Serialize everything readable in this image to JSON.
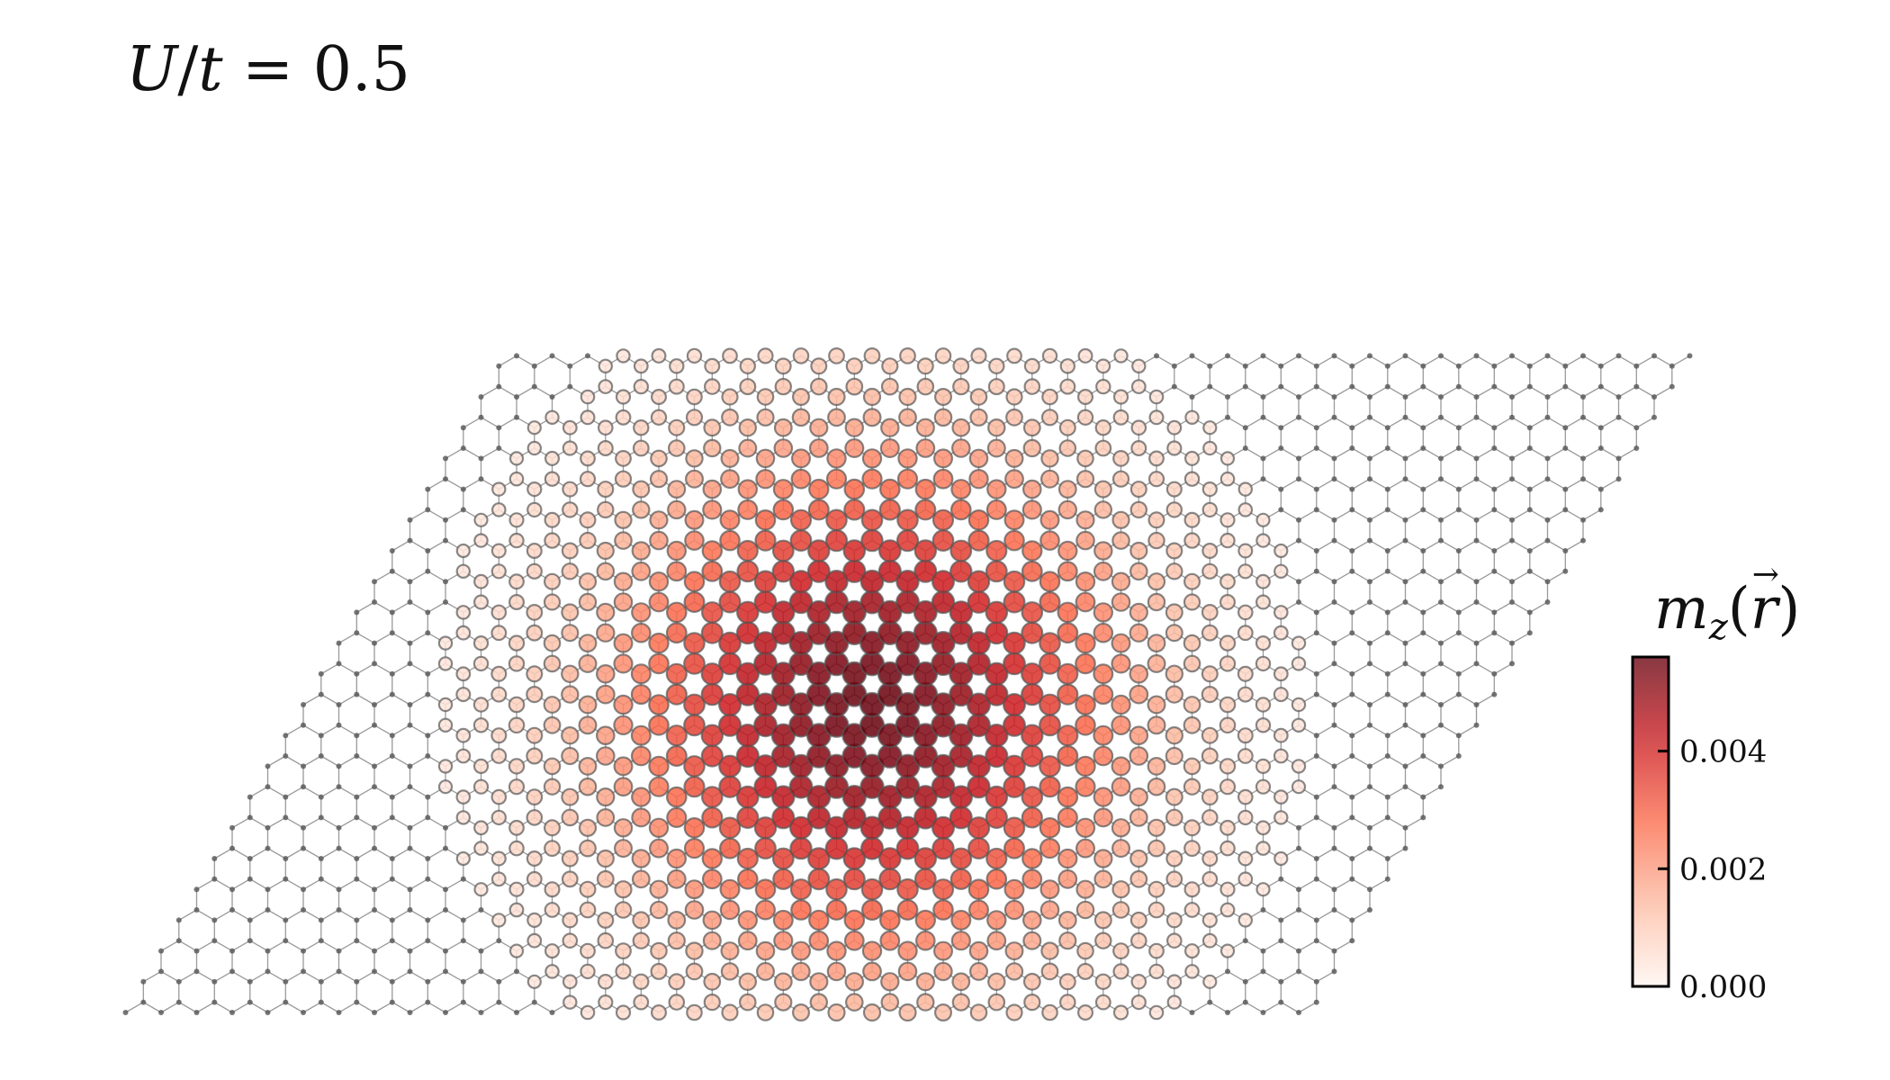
{
  "annotation": {
    "symbol_U": "U",
    "slash": "/",
    "symbol_t": "t",
    "equals": " = ",
    "value": "0.5"
  },
  "colorbar": {
    "title_m": "m",
    "title_sub": "z",
    "title_open": "(",
    "title_r": "r",
    "title_vec": "→",
    "title_close": ")",
    "ticks": [
      "0.000",
      "0.002",
      "0.004"
    ],
    "tick_values": [
      0.0,
      0.002,
      0.004
    ],
    "min": 0.0,
    "max": 0.0056,
    "colormap": [
      "#fff5f0",
      "#fcbba1",
      "#fb6a4a",
      "#cb181d",
      "#67000d"
    ]
  },
  "lattice": {
    "type": "honeycomb",
    "cells_a": 34,
    "cells_b": 22,
    "center_cell_a": 16,
    "center_cell_b": 10,
    "decay_radius_cells": 5.2,
    "bond_color": "#888888",
    "node_color": "#555555"
  }
}
